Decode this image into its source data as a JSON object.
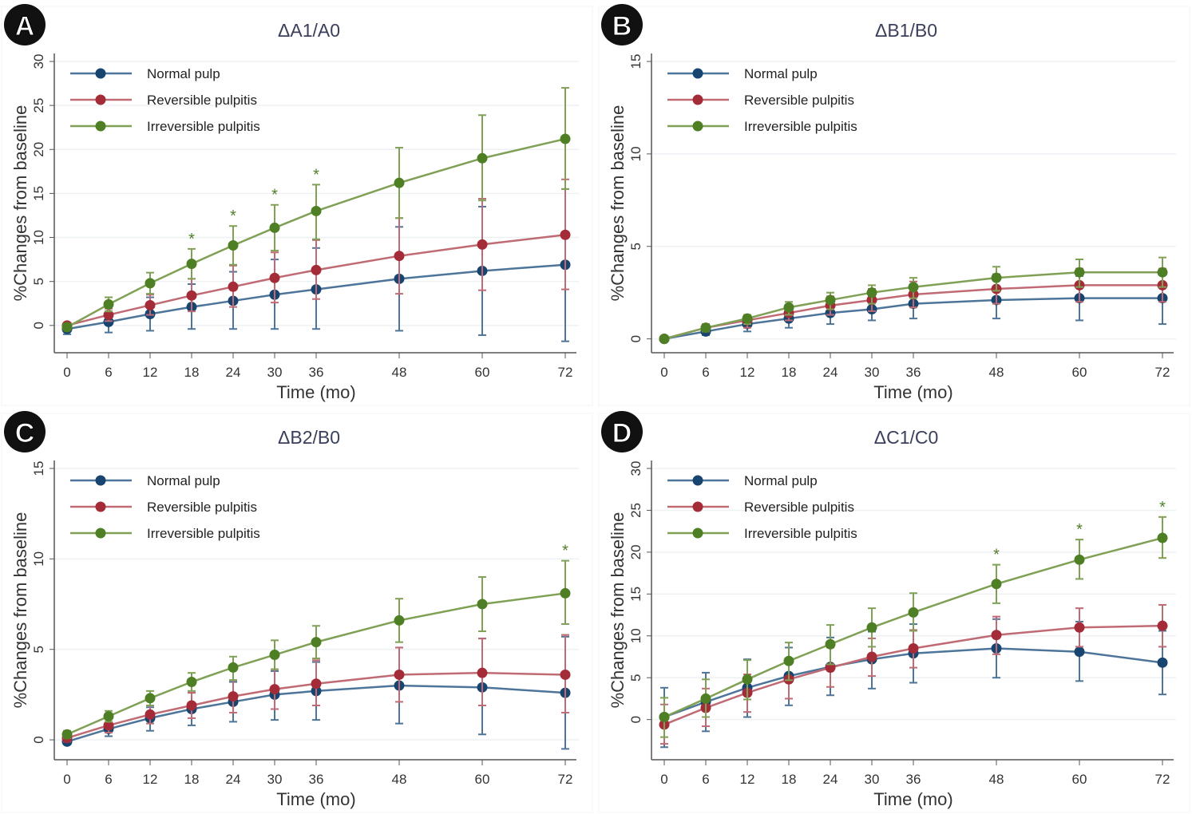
{
  "colors": {
    "normal_marker": "#17456f",
    "normal_line": "#4d759a",
    "reversible_marker": "#a42c38",
    "reversible_line": "#c06a74",
    "irreversible_marker": "#4f7f25",
    "irreversible_line": "#7fa055",
    "asterisk": "#4f7f25",
    "grid": "#edf1f4",
    "axis": "#555555"
  },
  "chart_data": [
    {
      "type": "line",
      "panel_letter": "A",
      "title": "ΔA1/A0",
      "xlabel": "Time (mo)",
      "ylabel": "%Changes from baseline",
      "x": [
        0,
        6,
        12,
        18,
        24,
        30,
        36,
        48,
        60,
        72
      ],
      "yticks": [
        0,
        5,
        10,
        15,
        20,
        25,
        30
      ],
      "ylim": [
        -3.1,
        30
      ],
      "grid": true,
      "legend": {
        "placement": "top-left",
        "entries": [
          "Normal pulp",
          "Reversible pulpitis",
          "Irreversible pulpitis"
        ]
      },
      "significance_marker": "*",
      "significant_x": [
        18,
        24,
        30,
        36
      ],
      "series": [
        {
          "name": "Normal pulp",
          "key": "normal",
          "values": [
            -0.4,
            0.4,
            1.3,
            2.1,
            2.8,
            3.5,
            4.1,
            5.3,
            6.2,
            6.9
          ],
          "lower": [
            -1.0,
            -0.8,
            -0.6,
            -0.4,
            -0.4,
            -0.4,
            -0.4,
            -0.6,
            -1.1,
            -1.8
          ],
          "upper": [
            0.2,
            1.6,
            3.2,
            4.7,
            6.1,
            7.5,
            8.8,
            11.2,
            13.5,
            15.5
          ]
        },
        {
          "name": "Reversible pulpitis",
          "key": "reversible",
          "values": [
            0.0,
            1.2,
            2.3,
            3.4,
            4.4,
            5.4,
            6.3,
            7.9,
            9.2,
            10.3
          ],
          "lower": [
            -0.3,
            0.5,
            1.2,
            1.6,
            2.1,
            2.6,
            3.0,
            3.6,
            4.0,
            4.1
          ],
          "upper": [
            0.3,
            1.9,
            3.5,
            5.3,
            6.8,
            8.3,
            9.7,
            12.2,
            14.4,
            16.6
          ]
        },
        {
          "name": "Irreversible pulpitis",
          "key": "irreversible",
          "values": [
            -0.2,
            2.4,
            4.8,
            7.0,
            9.1,
            11.1,
            13.0,
            16.2,
            19.0,
            21.2
          ],
          "lower": [
            -0.5,
            1.6,
            3.6,
            5.3,
            6.9,
            8.5,
            9.8,
            12.2,
            14.2,
            15.5
          ],
          "upper": [
            0.2,
            3.2,
            6.0,
            8.7,
            11.3,
            13.7,
            16.0,
            20.2,
            23.9,
            27.0
          ]
        }
      ]
    },
    {
      "type": "line",
      "panel_letter": "B",
      "title": "ΔB1/B0",
      "xlabel": "Time (mo)",
      "ylabel": "%Changes from baseline",
      "x": [
        0,
        6,
        12,
        18,
        24,
        30,
        36,
        48,
        60,
        72
      ],
      "yticks": [
        0,
        5,
        10,
        15
      ],
      "ylim": [
        -0.75,
        15
      ],
      "grid": true,
      "legend": {
        "placement": "top-left",
        "entries": [
          "Normal pulp",
          "Reversible pulpitis",
          "Irreversible pulpitis"
        ]
      },
      "significance_marker": "*",
      "significant_x": [],
      "series": [
        {
          "name": "Normal pulp",
          "key": "normal",
          "values": [
            0.0,
            0.4,
            0.8,
            1.1,
            1.4,
            1.6,
            1.9,
            2.1,
            2.2,
            2.2
          ],
          "lower": [
            -0.1,
            0.2,
            0.4,
            0.6,
            0.8,
            1.0,
            1.1,
            1.1,
            1.0,
            0.8
          ],
          "upper": [
            0.1,
            0.6,
            1.2,
            1.6,
            2.0,
            2.3,
            2.7,
            3.2,
            3.4,
            3.6
          ]
        },
        {
          "name": "Reversible pulpitis",
          "key": "reversible",
          "values": [
            0.0,
            0.6,
            1.0,
            1.4,
            1.8,
            2.1,
            2.4,
            2.7,
            2.9,
            2.9
          ],
          "lower": [
            -0.1,
            0.4,
            0.6,
            1.0,
            1.3,
            1.5,
            1.7,
            1.9,
            2.0,
            2.0
          ],
          "upper": [
            0.1,
            0.8,
            1.3,
            1.8,
            2.3,
            2.7,
            3.1,
            3.5,
            3.8,
            3.8
          ]
        },
        {
          "name": "Irreversible pulpitis",
          "key": "irreversible",
          "values": [
            0.0,
            0.6,
            1.1,
            1.7,
            2.1,
            2.5,
            2.8,
            3.3,
            3.6,
            3.6
          ],
          "lower": [
            -0.1,
            0.4,
            0.8,
            1.3,
            1.6,
            1.9,
            2.2,
            2.6,
            2.8,
            2.8
          ],
          "upper": [
            0.1,
            0.8,
            1.3,
            2.0,
            2.5,
            2.9,
            3.3,
            3.9,
            4.3,
            4.4
          ]
        }
      ]
    },
    {
      "type": "line",
      "panel_letter": "C",
      "title": "ΔB2/B0",
      "xlabel": "Time (mo)",
      "ylabel": "%Changes from baseline",
      "x": [
        0,
        6,
        12,
        18,
        24,
        30,
        36,
        48,
        60,
        72
      ],
      "yticks": [
        0,
        5,
        10,
        15
      ],
      "ylim": [
        -1.1,
        15
      ],
      "grid": true,
      "legend": {
        "placement": "top-left",
        "entries": [
          "Normal pulp",
          "Reversible pulpitis",
          "Irreversible pulpitis"
        ]
      },
      "significance_marker": "*",
      "significant_x": [
        72
      ],
      "series": [
        {
          "name": "Normal pulp",
          "key": "normal",
          "values": [
            -0.1,
            0.6,
            1.2,
            1.7,
            2.1,
            2.5,
            2.7,
            3.0,
            2.9,
            2.6
          ],
          "lower": [
            -0.2,
            0.2,
            0.5,
            0.8,
            1.0,
            1.1,
            1.1,
            0.9,
            0.3,
            -0.5
          ],
          "upper": [
            0.0,
            1.0,
            1.8,
            2.6,
            3.2,
            3.8,
            4.3,
            5.1,
            5.6,
            5.7
          ]
        },
        {
          "name": "Reversible pulpitis",
          "key": "reversible",
          "values": [
            0.1,
            0.8,
            1.4,
            1.9,
            2.4,
            2.8,
            3.1,
            3.6,
            3.7,
            3.6
          ],
          "lower": [
            -0.1,
            0.4,
            0.9,
            1.2,
            1.5,
            1.7,
            1.9,
            2.1,
            1.9,
            1.5
          ],
          "upper": [
            0.3,
            1.2,
            1.9,
            2.6,
            3.3,
            3.9,
            4.4,
            5.1,
            5.6,
            5.8
          ]
        },
        {
          "name": "Irreversible pulpitis",
          "key": "irreversible",
          "values": [
            0.3,
            1.3,
            2.3,
            3.2,
            4.0,
            4.7,
            5.4,
            6.6,
            7.5,
            8.1
          ],
          "lower": [
            0.1,
            1.0,
            1.9,
            2.7,
            3.3,
            3.9,
            4.5,
            5.4,
            6.0,
            6.4
          ],
          "upper": [
            0.5,
            1.6,
            2.7,
            3.7,
            4.6,
            5.5,
            6.3,
            7.8,
            9.0,
            9.9
          ]
        }
      ]
    },
    {
      "type": "line",
      "panel_letter": "D",
      "title": "ΔC1/C0",
      "xlabel": "Time (mo)",
      "ylabel": "%Changes from baseline",
      "x": [
        0,
        6,
        12,
        18,
        24,
        30,
        36,
        48,
        60,
        72
      ],
      "yticks": [
        0,
        5,
        10,
        15,
        20,
        25,
        30
      ],
      "ylim": [
        -4.8,
        30
      ],
      "grid": true,
      "legend": {
        "placement": "top-left",
        "entries": [
          "Normal pulp",
          "Reversible pulpitis",
          "Irreversible pulpitis"
        ]
      },
      "significance_marker": "*",
      "significant_x": [
        48,
        60,
        72
      ],
      "series": [
        {
          "name": "Normal pulp",
          "key": "normal",
          "values": [
            0.3,
            2.1,
            3.8,
            5.2,
            6.3,
            7.2,
            7.9,
            8.5,
            8.1,
            6.8
          ],
          "lower": [
            -3.3,
            -1.4,
            0.3,
            1.7,
            2.9,
            3.7,
            4.4,
            5.0,
            4.6,
            3.0
          ],
          "upper": [
            3.8,
            5.6,
            7.2,
            8.6,
            9.8,
            10.5,
            11.4,
            12.0,
            11.7,
            10.6
          ]
        },
        {
          "name": "Reversible pulpitis",
          "key": "reversible",
          "values": [
            -0.6,
            1.4,
            3.2,
            4.8,
            6.2,
            7.5,
            8.5,
            10.1,
            11.0,
            11.2
          ],
          "lower": [
            -2.9,
            -0.8,
            0.9,
            2.5,
            3.9,
            5.2,
            6.2,
            7.8,
            8.7,
            8.7
          ],
          "upper": [
            1.8,
            3.7,
            5.4,
            7.1,
            8.6,
            9.7,
            10.7,
            12.3,
            13.3,
            13.7
          ]
        },
        {
          "name": "Irreversible pulpitis",
          "key": "irreversible",
          "values": [
            0.3,
            2.5,
            4.8,
            7.0,
            9.0,
            11.0,
            12.8,
            16.2,
            19.1,
            21.7
          ],
          "lower": [
            -2.1,
            0.3,
            2.4,
            4.7,
            6.6,
            8.7,
            10.6,
            13.9,
            16.8,
            19.3
          ],
          "upper": [
            2.6,
            4.8,
            7.1,
            9.2,
            11.3,
            13.3,
            15.1,
            18.5,
            21.5,
            24.2
          ]
        }
      ]
    }
  ]
}
